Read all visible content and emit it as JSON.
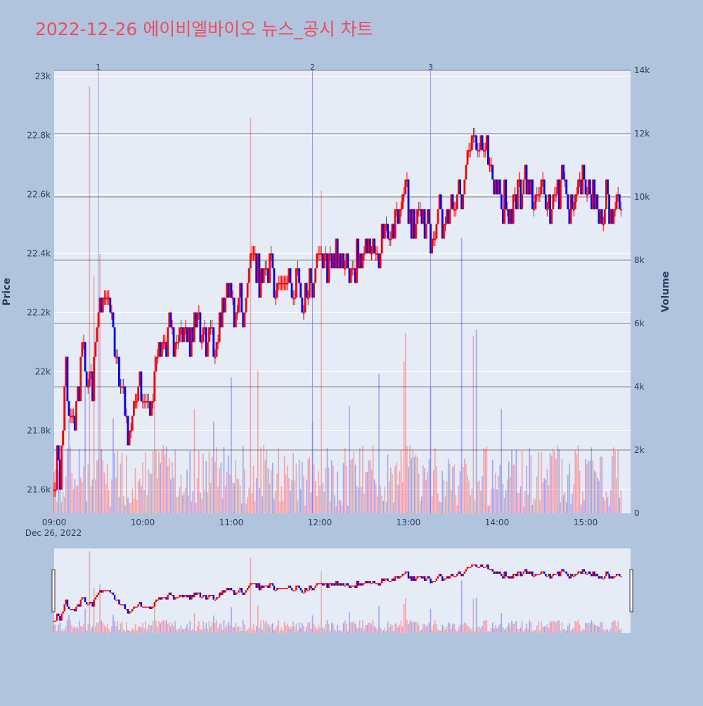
{
  "title": "2022-12-26 에이비엘바이오 뉴스_공시 차트",
  "colors": {
    "background": "#b0c4de",
    "plot_background": "#e5ecf6",
    "title": "#ef4d5e",
    "up": "#ff0000",
    "down": "#0000ff",
    "grid": "#ffffff",
    "volume_grid": "#7f7f7f"
  },
  "chart_data": {
    "type": "candlestick",
    "xlabel_date": "Dec 26, 2022",
    "y_label": "Price",
    "y2_label": "Volume",
    "x_ticks": [
      "09:00",
      "10:00",
      "11:00",
      "12:00",
      "13:00",
      "14:00",
      "15:00"
    ],
    "x_range": [
      "09:00",
      "15:30"
    ],
    "price_axis": {
      "range": [
        21520,
        23020
      ],
      "ticks": [
        21600,
        21800,
        22000,
        22200,
        22400,
        22600,
        22800,
        23000
      ],
      "tick_labels": [
        "21.6k",
        "21.8k",
        "22k",
        "22.2k",
        "22.4k",
        "22.6k",
        "22.8k",
        "23k"
      ]
    },
    "volume_axis": {
      "range": [
        0,
        14000
      ],
      "ticks": [
        0,
        2000,
        4000,
        6000,
        8000,
        10000,
        12000,
        14000
      ],
      "tick_labels": [
        "0",
        "2k",
        "4k",
        "6k",
        "8k",
        "10k",
        "12k",
        "14k"
      ]
    },
    "news_markers": [
      {
        "label": "1",
        "time": "09:30"
      },
      {
        "label": "2",
        "time": "11:55"
      },
      {
        "label": "3",
        "time": "13:15"
      }
    ],
    "price_path": [
      [
        "09:00",
        21600
      ],
      [
        "09:02",
        21700
      ],
      [
        "09:04",
        21650
      ],
      [
        "09:06",
        21800
      ],
      [
        "09:07",
        21950
      ],
      [
        "09:08",
        22050
      ],
      [
        "09:10",
        21850
      ],
      [
        "09:12",
        21900
      ],
      [
        "09:14",
        21750
      ],
      [
        "09:16",
        21900
      ],
      [
        "09:18",
        22000
      ],
      [
        "09:20",
        22100
      ],
      [
        "09:22",
        21950
      ],
      [
        "09:24",
        22000
      ],
      [
        "09:26",
        21950
      ],
      [
        "09:28",
        22100
      ],
      [
        "09:30",
        22250
      ],
      [
        "09:32",
        22200
      ],
      [
        "09:36",
        22300
      ],
      [
        "09:38",
        22200
      ],
      [
        "09:40",
        22100
      ],
      [
        "09:43",
        22000
      ],
      [
        "09:45",
        21950
      ],
      [
        "09:47",
        21900
      ],
      [
        "09:49",
        21850
      ],
      [
        "09:50",
        21750
      ],
      [
        "09:52",
        21850
      ],
      [
        "09:54",
        21900
      ],
      [
        "09:56",
        21950
      ],
      [
        "10:00",
        21900
      ],
      [
        "10:03",
        21950
      ],
      [
        "10:06",
        21900
      ],
      [
        "10:09",
        22050
      ],
      [
        "10:12",
        22100
      ],
      [
        "10:15",
        22100
      ],
      [
        "10:18",
        22150
      ],
      [
        "10:22",
        22100
      ],
      [
        "10:25",
        22100
      ],
      [
        "10:28",
        22150
      ],
      [
        "10:31",
        22100
      ],
      [
        "10:34",
        22150
      ],
      [
        "10:37",
        22200
      ],
      [
        "10:40",
        22150
      ],
      [
        "10:43",
        22100
      ],
      [
        "10:46",
        22150
      ],
      [
        "10:49",
        22100
      ],
      [
        "10:52",
        22150
      ],
      [
        "10:55",
        22200
      ],
      [
        "10:58",
        22300
      ],
      [
        "11:00",
        22250
      ],
      [
        "11:03",
        22200
      ],
      [
        "11:06",
        22250
      ],
      [
        "11:09",
        22200
      ],
      [
        "11:11",
        22300
      ],
      [
        "11:13",
        22350
      ],
      [
        "11:15",
        22400
      ],
      [
        "11:20",
        22300
      ],
      [
        "11:25",
        22350
      ],
      [
        "11:30",
        22300
      ],
      [
        "11:35",
        22350
      ],
      [
        "11:38",
        22300
      ],
      [
        "11:40",
        22250
      ],
      [
        "11:45",
        22300
      ],
      [
        "11:50",
        22250
      ],
      [
        "11:55",
        22300
      ],
      [
        "12:00",
        22400
      ],
      [
        "12:05",
        22350
      ],
      [
        "12:10",
        22400
      ],
      [
        "12:20",
        22350
      ],
      [
        "12:30",
        22400
      ],
      [
        "12:35",
        22400
      ],
      [
        "12:38",
        22450
      ],
      [
        "12:40",
        22400
      ],
      [
        "12:43",
        22500
      ],
      [
        "12:48",
        22450
      ],
      [
        "12:52",
        22500
      ],
      [
        "12:55",
        22550
      ],
      [
        "12:57",
        22600
      ],
      [
        "12:59",
        22650
      ],
      [
        "13:00",
        22550
      ],
      [
        "13:03",
        22500
      ],
      [
        "13:06",
        22550
      ],
      [
        "13:10",
        22500
      ],
      [
        "13:13",
        22550
      ],
      [
        "13:15",
        22450
      ],
      [
        "13:17",
        22500
      ],
      [
        "13:20",
        22550
      ],
      [
        "13:25",
        22500
      ],
      [
        "13:30",
        22550
      ],
      [
        "13:35",
        22600
      ],
      [
        "13:38",
        22650
      ],
      [
        "13:40",
        22700
      ],
      [
        "13:42",
        22750
      ],
      [
        "13:44",
        22800
      ],
      [
        "13:47",
        22750
      ],
      [
        "13:50",
        22800
      ],
      [
        "13:53",
        22750
      ],
      [
        "13:55",
        22700
      ],
      [
        "13:58",
        22650
      ],
      [
        "14:00",
        22600
      ],
      [
        "14:03",
        22550
      ],
      [
        "14:06",
        22600
      ],
      [
        "14:09",
        22500
      ],
      [
        "14:12",
        22550
      ],
      [
        "14:15",
        22600
      ],
      [
        "14:20",
        22650
      ],
      [
        "14:25",
        22550
      ],
      [
        "14:30",
        22650
      ],
      [
        "14:35",
        22550
      ],
      [
        "14:40",
        22600
      ],
      [
        "14:45",
        22650
      ],
      [
        "14:50",
        22550
      ],
      [
        "14:55",
        22600
      ],
      [
        "15:00",
        22650
      ],
      [
        "15:03",
        22550
      ],
      [
        "15:06",
        22600
      ],
      [
        "15:10",
        22500
      ],
      [
        "15:15",
        22600
      ],
      [
        "15:18",
        22500
      ],
      [
        "15:20",
        22600
      ],
      [
        "15:22",
        22550
      ],
      [
        "15:24",
        22500
      ]
    ],
    "volume_spikes": [
      [
        "09:01",
        1400
      ],
      [
        "09:10",
        3000
      ],
      [
        "09:21",
        4000
      ],
      [
        "09:24",
        13500
      ],
      [
        "09:27",
        7500
      ],
      [
        "09:31",
        8200
      ],
      [
        "09:40",
        3000
      ],
      [
        "10:08",
        5000
      ],
      [
        "10:22",
        2000
      ],
      [
        "10:35",
        3300
      ],
      [
        "10:48",
        2900
      ],
      [
        "11:00",
        4300
      ],
      [
        "11:13",
        12500
      ],
      [
        "11:18",
        4500
      ],
      [
        "11:55",
        2900
      ],
      [
        "12:01",
        10200
      ],
      [
        "12:20",
        3400
      ],
      [
        "12:40",
        4400
      ],
      [
        "12:57",
        4800
      ],
      [
        "12:58",
        5700
      ],
      [
        "13:15",
        4000
      ],
      [
        "13:36",
        8700
      ],
      [
        "13:44",
        5600
      ],
      [
        "13:46",
        5800
      ],
      [
        "14:03",
        3300
      ],
      [
        "15:28",
        6000
      ]
    ],
    "volume_baseline": 1400,
    "volume_seed": 7
  }
}
